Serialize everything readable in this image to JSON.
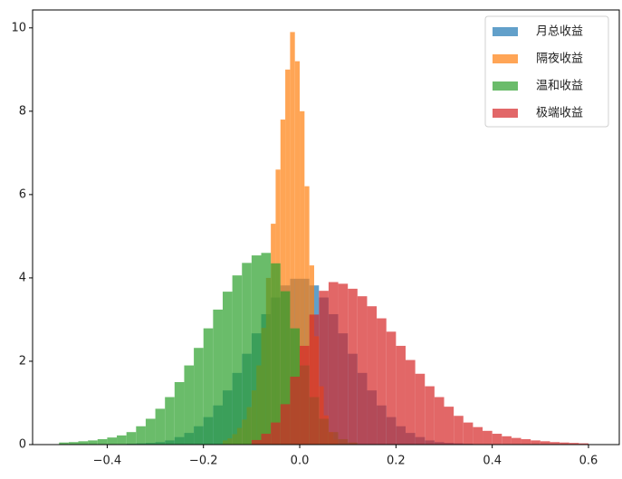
{
  "chart_data": {
    "type": "histogram",
    "xlim": [
      -0.555,
      0.664
    ],
    "ylim": [
      0,
      10.43
    ],
    "xticks": [
      {
        "value": -0.4,
        "label": "−0.4"
      },
      {
        "value": -0.2,
        "label": "−0.2"
      },
      {
        "value": 0,
        "label": "0.0"
      },
      0.2,
      0.4,
      0.6
    ],
    "yticks": [
      0,
      2,
      4,
      6,
      8,
      10
    ],
    "legend": "upper right",
    "opacity": 0.7,
    "series": [
      {
        "name": "月总收益",
        "color": "#1f77b4",
        "bins": [
          -0.4,
          -0.38,
          -0.36,
          -0.34,
          -0.32,
          -0.3,
          -0.28,
          -0.26,
          -0.24,
          -0.22,
          -0.2,
          -0.18,
          -0.16,
          -0.14,
          -0.12,
          -0.1,
          -0.08,
          -0.06,
          -0.04,
          -0.02,
          0,
          0.02,
          0.04,
          0.06,
          0.08,
          0.1,
          0.12,
          0.14,
          0.16,
          0.18,
          0.2,
          0.22,
          0.24,
          0.26,
          0.28,
          0.3,
          0.32,
          0.34,
          0.36,
          0.38,
          0.4
        ],
        "values": [
          0.01,
          0.01,
          0.02,
          0.03,
          0.04,
          0.06,
          0.1,
          0.18,
          0.28,
          0.44,
          0.66,
          0.94,
          1.3,
          1.72,
          2.18,
          2.67,
          3.13,
          3.53,
          3.82,
          3.98,
          3.98,
          3.82,
          3.53,
          3.13,
          2.67,
          2.18,
          1.72,
          1.3,
          0.94,
          0.66,
          0.44,
          0.28,
          0.18,
          0.1,
          0.06,
          0.04,
          0.03,
          0.02,
          0.01,
          0.01
        ]
      },
      {
        "name": "隔夜收益",
        "color": "#ff7f0e",
        "bins": [
          -0.16,
          -0.15,
          -0.14,
          -0.13,
          -0.12,
          -0.11,
          -0.1,
          -0.09,
          -0.08,
          -0.07,
          -0.06,
          -0.05,
          -0.04,
          -0.03,
          -0.02,
          -0.01,
          0,
          0.01,
          0.02,
          0.03,
          0.04,
          0.05,
          0.06,
          0.07,
          0.08
        ],
        "values": [
          0.1,
          0.15,
          0.25,
          0.4,
          0.6,
          0.9,
          1.3,
          1.9,
          2.8,
          4.0,
          5.3,
          6.6,
          7.8,
          9.0,
          9.9,
          9.2,
          8.0,
          6.2,
          4.3,
          2.6,
          1.4,
          0.7,
          0.3,
          0.12
        ]
      },
      {
        "name": "温和收益",
        "color": "#2ca02c",
        "bins": [
          -0.5,
          -0.48,
          -0.46,
          -0.44,
          -0.42,
          -0.4,
          -0.38,
          -0.36,
          -0.34,
          -0.32,
          -0.3,
          -0.28,
          -0.26,
          -0.24,
          -0.22,
          -0.2,
          -0.18,
          -0.16,
          -0.14,
          -0.12,
          -0.1,
          -0.08,
          -0.06,
          -0.04,
          -0.02,
          0,
          0.02,
          0.04,
          0.06,
          0.08,
          0.1,
          0.12
        ],
        "values": [
          0.05,
          0.06,
          0.08,
          0.1,
          0.13,
          0.17,
          0.22,
          0.3,
          0.44,
          0.62,
          0.86,
          1.14,
          1.5,
          1.9,
          2.32,
          2.79,
          3.24,
          3.67,
          4.06,
          4.36,
          4.54,
          4.6,
          4.35,
          3.68,
          2.79,
          1.9,
          1.14,
          0.62,
          0.3,
          0.13,
          0.05
        ]
      },
      {
        "name": "极端收益",
        "color": "#d62728",
        "bins": [
          -0.1,
          -0.08,
          -0.06,
          -0.04,
          -0.02,
          0,
          0.02,
          0.04,
          0.06,
          0.08,
          0.1,
          0.12,
          0.14,
          0.16,
          0.18,
          0.2,
          0.22,
          0.24,
          0.26,
          0.28,
          0.3,
          0.32,
          0.34,
          0.36,
          0.38,
          0.4,
          0.42,
          0.44,
          0.46,
          0.48,
          0.5,
          0.52,
          0.54,
          0.56,
          0.58,
          0.6
        ],
        "values": [
          0.11,
          0.26,
          0.53,
          0.97,
          1.63,
          2.37,
          3.12,
          3.69,
          3.9,
          3.86,
          3.74,
          3.56,
          3.32,
          3.03,
          2.71,
          2.37,
          2.03,
          1.7,
          1.4,
          1.14,
          0.91,
          0.69,
          0.53,
          0.42,
          0.33,
          0.26,
          0.2,
          0.16,
          0.13,
          0.1,
          0.08,
          0.06,
          0.05,
          0.04,
          0.03
        ]
      }
    ]
  }
}
